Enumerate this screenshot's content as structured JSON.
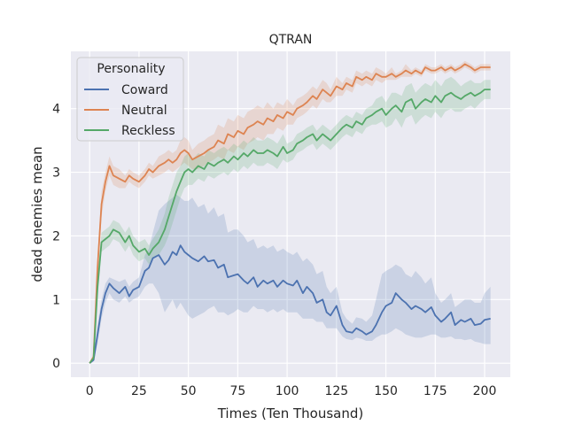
{
  "chart_data": {
    "type": "line",
    "title": "QTRAN",
    "xlabel": "Times (Ten Thousand)",
    "ylabel": "dead enemies mean",
    "xlim": [
      -9.5,
      213
    ],
    "ylim": [
      -0.22,
      4.9
    ],
    "xticks": [
      "0",
      "25",
      "50",
      "75",
      "100",
      "125",
      "150",
      "175",
      "200"
    ],
    "yticks": [
      "0",
      "1",
      "2",
      "3",
      "4"
    ],
    "grid": true,
    "legend": {
      "title": "Personality",
      "placement": "top-left"
    },
    "x": [
      0,
      2,
      4,
      6,
      8,
      10,
      12,
      15,
      18,
      20,
      22,
      25,
      28,
      30,
      32,
      35,
      38,
      40,
      42,
      44,
      46,
      48,
      50,
      52,
      55,
      58,
      60,
      63,
      65,
      68,
      70,
      73,
      75,
      78,
      80,
      83,
      85,
      88,
      90,
      93,
      95,
      98,
      100,
      103,
      105,
      108,
      110,
      113,
      115,
      118,
      120,
      122,
      125,
      128,
      130,
      133,
      135,
      138,
      140,
      143,
      145,
      148,
      150,
      153,
      155,
      158,
      160,
      163,
      165,
      168,
      170,
      173,
      175,
      178,
      180,
      183,
      185,
      188,
      190,
      193,
      195,
      198,
      200,
      203
    ],
    "series": [
      {
        "name": "Coward",
        "color": "#4c72b0",
        "values": [
          0,
          0.05,
          0.45,
          0.85,
          1.1,
          1.25,
          1.18,
          1.1,
          1.2,
          1.05,
          1.15,
          1.2,
          1.45,
          1.5,
          1.65,
          1.7,
          1.55,
          1.62,
          1.75,
          1.7,
          1.85,
          1.75,
          1.7,
          1.65,
          1.6,
          1.68,
          1.6,
          1.62,
          1.5,
          1.55,
          1.35,
          1.38,
          1.4,
          1.3,
          1.25,
          1.35,
          1.2,
          1.3,
          1.25,
          1.3,
          1.2,
          1.3,
          1.25,
          1.22,
          1.3,
          1.1,
          1.2,
          1.1,
          0.95,
          1.0,
          0.8,
          0.75,
          0.9,
          0.6,
          0.5,
          0.48,
          0.55,
          0.5,
          0.45,
          0.5,
          0.6,
          0.8,
          0.9,
          0.95,
          1.1,
          1.0,
          0.95,
          0.85,
          0.9,
          0.85,
          0.8,
          0.88,
          0.75,
          0.65,
          0.7,
          0.8,
          0.6,
          0.68,
          0.65,
          0.7,
          0.6,
          0.62,
          0.68,
          0.7
        ],
        "lower": [
          0,
          0.03,
          0.3,
          0.7,
          0.95,
          1.1,
          1.0,
          0.95,
          1.05,
          0.95,
          1.0,
          1.05,
          1.2,
          1.25,
          1.25,
          1.1,
          0.8,
          0.9,
          1.0,
          0.85,
          0.95,
          0.85,
          0.75,
          0.7,
          0.75,
          0.8,
          0.85,
          0.9,
          0.8,
          0.8,
          0.75,
          0.8,
          0.85,
          0.8,
          0.8,
          0.9,
          0.85,
          0.85,
          0.8,
          0.85,
          0.8,
          0.85,
          0.8,
          0.8,
          0.8,
          0.7,
          0.7,
          0.7,
          0.65,
          0.65,
          0.55,
          0.55,
          0.55,
          0.42,
          0.38,
          0.36,
          0.4,
          0.38,
          0.35,
          0.35,
          0.4,
          0.45,
          0.45,
          0.5,
          0.55,
          0.5,
          0.45,
          0.42,
          0.4,
          0.4,
          0.42,
          0.45,
          0.45,
          0.4,
          0.4,
          0.42,
          0.38,
          0.38,
          0.36,
          0.38,
          0.34,
          0.32,
          0.3,
          0.3
        ],
        "upper": [
          0,
          0.08,
          0.6,
          1.0,
          1.25,
          1.35,
          1.32,
          1.28,
          1.32,
          1.2,
          1.28,
          1.35,
          1.7,
          1.8,
          2.05,
          2.4,
          2.5,
          2.55,
          2.6,
          2.65,
          2.6,
          2.55,
          2.55,
          2.6,
          2.45,
          2.5,
          2.35,
          2.45,
          2.3,
          2.35,
          2.05,
          2.1,
          2.1,
          2.0,
          1.9,
          1.95,
          1.8,
          1.85,
          1.8,
          1.85,
          1.75,
          1.8,
          1.75,
          1.7,
          1.75,
          1.6,
          1.65,
          1.55,
          1.4,
          1.45,
          1.2,
          1.1,
          1.2,
          0.8,
          0.7,
          0.62,
          0.72,
          0.7,
          0.65,
          0.75,
          1.0,
          1.4,
          1.45,
          1.5,
          1.55,
          1.5,
          1.4,
          1.35,
          1.45,
          1.35,
          1.25,
          1.35,
          1.1,
          0.95,
          1.0,
          1.1,
          0.88,
          0.95,
          1.0,
          1.0,
          0.95,
          0.95,
          1.1,
          1.2
        ]
      },
      {
        "name": "Neutral",
        "color": "#dd8452",
        "values": [
          0,
          0.1,
          1.5,
          2.5,
          2.85,
          3.1,
          2.95,
          2.9,
          2.85,
          2.95,
          2.9,
          2.85,
          2.95,
          3.05,
          3.0,
          3.1,
          3.15,
          3.2,
          3.15,
          3.2,
          3.3,
          3.35,
          3.3,
          3.2,
          3.25,
          3.3,
          3.35,
          3.4,
          3.5,
          3.45,
          3.6,
          3.55,
          3.65,
          3.6,
          3.7,
          3.75,
          3.8,
          3.75,
          3.85,
          3.8,
          3.9,
          3.85,
          3.95,
          3.9,
          4.0,
          4.05,
          4.1,
          4.2,
          4.15,
          4.3,
          4.25,
          4.2,
          4.35,
          4.3,
          4.4,
          4.35,
          4.5,
          4.45,
          4.5,
          4.45,
          4.55,
          4.5,
          4.5,
          4.55,
          4.5,
          4.55,
          4.6,
          4.55,
          4.6,
          4.55,
          4.65,
          4.6,
          4.6,
          4.65,
          4.6,
          4.65,
          4.6,
          4.65,
          4.7,
          4.65,
          4.6,
          4.65,
          4.65,
          4.65
        ],
        "lower": [
          0,
          0.05,
          1.3,
          2.3,
          2.7,
          2.95,
          2.8,
          2.75,
          2.75,
          2.85,
          2.8,
          2.75,
          2.85,
          2.95,
          2.9,
          2.95,
          3.0,
          3.05,
          3.0,
          3.05,
          3.1,
          3.15,
          3.1,
          3.05,
          3.05,
          3.1,
          3.15,
          3.2,
          3.25,
          3.2,
          3.35,
          3.3,
          3.4,
          3.35,
          3.45,
          3.5,
          3.55,
          3.5,
          3.6,
          3.6,
          3.7,
          3.65,
          3.75,
          3.75,
          3.85,
          3.9,
          3.95,
          4.05,
          4.0,
          4.15,
          4.1,
          4.1,
          4.2,
          4.2,
          4.3,
          4.25,
          4.4,
          4.35,
          4.4,
          4.35,
          4.45,
          4.4,
          4.45,
          4.45,
          4.45,
          4.5,
          4.5,
          4.5,
          4.55,
          4.5,
          4.6,
          4.55,
          4.55,
          4.6,
          4.55,
          4.6,
          4.55,
          4.6,
          4.65,
          4.6,
          4.55,
          4.6,
          4.6,
          4.6
        ],
        "upper": [
          0,
          0.15,
          1.7,
          2.7,
          3.0,
          3.25,
          3.1,
          3.05,
          2.95,
          3.05,
          3.0,
          2.95,
          3.05,
          3.15,
          3.1,
          3.25,
          3.3,
          3.35,
          3.3,
          3.35,
          3.5,
          3.55,
          3.5,
          3.35,
          3.45,
          3.5,
          3.55,
          3.6,
          3.75,
          3.7,
          3.85,
          3.8,
          3.9,
          3.85,
          3.95,
          4.0,
          4.05,
          4.0,
          4.1,
          4.0,
          4.1,
          4.05,
          4.15,
          4.05,
          4.15,
          4.2,
          4.25,
          4.35,
          4.3,
          4.45,
          4.4,
          4.3,
          4.5,
          4.4,
          4.5,
          4.45,
          4.6,
          4.55,
          4.6,
          4.55,
          4.65,
          4.6,
          4.55,
          4.65,
          4.55,
          4.6,
          4.7,
          4.6,
          4.65,
          4.6,
          4.7,
          4.65,
          4.65,
          4.7,
          4.65,
          4.7,
          4.65,
          4.7,
          4.75,
          4.7,
          4.65,
          4.7,
          4.7,
          4.7
        ]
      },
      {
        "name": "Reckless",
        "color": "#55a868",
        "values": [
          0,
          0.08,
          1.2,
          1.9,
          1.95,
          2.0,
          2.1,
          2.05,
          1.9,
          2.0,
          1.85,
          1.75,
          1.8,
          1.7,
          1.8,
          1.9,
          2.1,
          2.3,
          2.5,
          2.7,
          2.85,
          3.0,
          3.05,
          3.0,
          3.1,
          3.05,
          3.15,
          3.1,
          3.15,
          3.2,
          3.15,
          3.25,
          3.2,
          3.3,
          3.25,
          3.35,
          3.3,
          3.3,
          3.35,
          3.3,
          3.25,
          3.4,
          3.3,
          3.35,
          3.45,
          3.5,
          3.55,
          3.6,
          3.5,
          3.6,
          3.55,
          3.5,
          3.6,
          3.7,
          3.75,
          3.7,
          3.8,
          3.75,
          3.85,
          3.9,
          3.95,
          4.0,
          3.9,
          4.0,
          4.05,
          3.95,
          4.1,
          4.15,
          4.0,
          4.1,
          4.15,
          4.1,
          4.2,
          4.1,
          4.2,
          4.25,
          4.2,
          4.15,
          4.2,
          4.25,
          4.2,
          4.25,
          4.3,
          4.3
        ],
        "lower": [
          0,
          0.05,
          1.0,
          1.75,
          1.8,
          1.85,
          1.95,
          1.9,
          1.75,
          1.85,
          1.7,
          1.6,
          1.65,
          1.55,
          1.65,
          1.7,
          1.85,
          2.0,
          2.2,
          2.4,
          2.6,
          2.75,
          2.8,
          2.8,
          2.9,
          2.85,
          2.95,
          2.9,
          2.95,
          3.0,
          2.95,
          3.05,
          3.0,
          3.1,
          3.05,
          3.15,
          3.1,
          3.1,
          3.15,
          3.1,
          3.05,
          3.2,
          3.15,
          3.2,
          3.3,
          3.35,
          3.4,
          3.45,
          3.35,
          3.45,
          3.4,
          3.35,
          3.45,
          3.55,
          3.6,
          3.55,
          3.65,
          3.6,
          3.7,
          3.75,
          3.75,
          3.8,
          3.7,
          3.75,
          3.85,
          3.7,
          3.85,
          3.9,
          3.75,
          3.85,
          3.9,
          3.85,
          3.95,
          3.85,
          3.95,
          4.0,
          3.95,
          3.95,
          4.0,
          4.05,
          4.0,
          4.1,
          4.15,
          4.15
        ],
        "upper": [
          0,
          0.12,
          1.4,
          2.05,
          2.1,
          2.15,
          2.25,
          2.2,
          2.05,
          2.15,
          2.0,
          1.9,
          1.95,
          1.85,
          1.95,
          2.1,
          2.35,
          2.6,
          2.8,
          3.0,
          3.1,
          3.25,
          3.3,
          3.2,
          3.3,
          3.25,
          3.35,
          3.3,
          3.35,
          3.4,
          3.35,
          3.45,
          3.4,
          3.5,
          3.45,
          3.55,
          3.5,
          3.5,
          3.55,
          3.5,
          3.45,
          3.6,
          3.45,
          3.5,
          3.6,
          3.65,
          3.7,
          3.75,
          3.65,
          3.75,
          3.7,
          3.65,
          3.75,
          3.85,
          3.9,
          3.85,
          3.95,
          3.9,
          4.0,
          4.05,
          4.15,
          4.2,
          4.1,
          4.25,
          4.25,
          4.2,
          4.35,
          4.4,
          4.25,
          4.35,
          4.4,
          4.35,
          4.45,
          4.35,
          4.45,
          4.5,
          4.45,
          4.35,
          4.4,
          4.45,
          4.4,
          4.4,
          4.45,
          4.45
        ]
      }
    ]
  }
}
